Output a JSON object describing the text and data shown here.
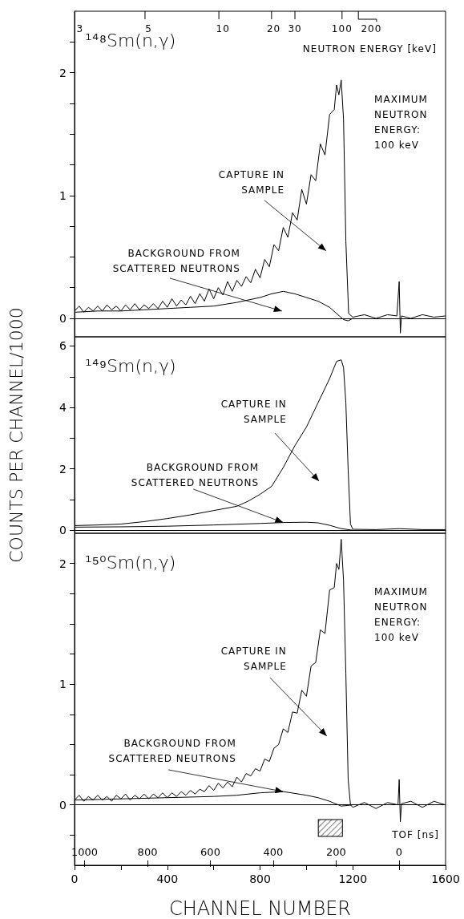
{
  "chart_data": [
    {
      "type": "line",
      "title": "¹⁴⁸Sm(n,γ)",
      "marker": "none",
      "tick_labels": "y",
      "xlim": [
        0,
        1600
      ],
      "ylim": [
        -0.15,
        2.5
      ],
      "yticks": [
        0,
        {
          "value": 0.25,
          "label": null
        },
        {
          "value": 0.5,
          "label": null
        },
        {
          "value": 0.75,
          "label": null
        },
        1,
        {
          "value": 1.25,
          "label": null
        },
        {
          "value": 1.5,
          "label": null
        },
        {
          "value": 1.75,
          "label": null
        },
        2,
        {
          "value": 2.25,
          "label": null
        }
      ],
      "annotations": [
        "CAPTURE IN\nSAMPLE",
        "BACKGROUND FROM\nSCATTERED NEUTRONS",
        "MAXIMUM\nNEUTRON\nENERGY:\n100 keV",
        "3",
        "5",
        "10",
        "20",
        "30",
        "100",
        "200",
        "NEUTRON ENERGY [keV]"
      ],
      "series": [
        {
          "color": "#000000",
          "x": [
            0,
            20,
            40,
            60,
            80,
            100,
            120,
            140,
            160,
            180,
            200,
            220,
            240,
            260,
            280,
            300,
            320,
            340,
            360,
            380,
            400,
            420,
            440,
            460,
            480,
            500,
            520,
            540,
            560,
            580,
            600,
            620,
            640,
            660,
            680,
            700,
            720,
            740,
            760,
            780,
            800,
            820,
            840,
            860,
            880,
            900,
            920,
            940,
            960,
            980,
            1000,
            1020,
            1040,
            1060,
            1080,
            1100,
            1120,
            1130,
            1140,
            1150,
            1160,
            1170,
            1182,
            1200,
            1250,
            1300,
            1350,
            1390,
            1400,
            1405,
            1410,
            1450,
            1500,
            1550,
            1600
          ],
          "values": [
            0.06,
            0.1,
            0.05,
            0.09,
            0.06,
            0.1,
            0.06,
            0.11,
            0.07,
            0.1,
            0.06,
            0.11,
            0.07,
            0.12,
            0.07,
            0.11,
            0.08,
            0.12,
            0.08,
            0.14,
            0.09,
            0.16,
            0.1,
            0.15,
            0.11,
            0.18,
            0.12,
            0.2,
            0.14,
            0.24,
            0.16,
            0.25,
            0.19,
            0.3,
            0.22,
            0.31,
            0.26,
            0.34,
            0.29,
            0.4,
            0.33,
            0.48,
            0.42,
            0.6,
            0.55,
            0.74,
            0.66,
            0.86,
            0.8,
            1.05,
            0.93,
            1.17,
            1.12,
            1.42,
            1.33,
            1.66,
            1.7,
            1.9,
            1.82,
            1.94,
            1.62,
            0.63,
            0.04,
            0.01,
            0.03,
            0.0,
            0.03,
            0.02,
            0.3,
            -0.12,
            0.02,
            0.0,
            0.03,
            0.01,
            0.02
          ]
        },
        {
          "color": "#000000",
          "x": [
            0,
            100,
            200,
            300,
            400,
            500,
            600,
            700,
            750,
            800,
            850,
            900,
            950,
            1000,
            1050,
            1100,
            1130,
            1160,
            1180,
            1200
          ],
          "values": [
            0.05,
            0.06,
            0.06,
            0.07,
            0.08,
            0.09,
            0.1,
            0.13,
            0.15,
            0.17,
            0.2,
            0.22,
            0.2,
            0.17,
            0.14,
            0.09,
            0.04,
            -0.01,
            -0.02,
            0.0
          ]
        }
      ]
    },
    {
      "type": "line",
      "title": "¹⁴⁹Sm(n,γ)",
      "marker": "none",
      "tick_labels": "y",
      "xlim": [
        0,
        1600
      ],
      "ylim": [
        -0.1,
        6.3
      ],
      "ylabel": "COUNTS PER CHANNEL/1000",
      "yticks": [
        0,
        {
          "value": 1,
          "label": null
        },
        2,
        {
          "value": 3,
          "label": null
        },
        4,
        {
          "value": 5,
          "label": null
        },
        6
      ],
      "annotations": [
        "CAPTURE IN\nSAMPLE",
        {
          "text": "BACKGROUND FROM\nSCATTERED NEUTRONS",
          "x": 900,
          "y": 0.25
        }
      ],
      "series": [
        {
          "color": "#000000",
          "x": [
            0,
            100,
            200,
            300,
            400,
            500,
            600,
            700,
            750,
            800,
            850,
            900,
            950,
            1000,
            1050,
            1100,
            1130,
            1150,
            1160,
            1170,
            1180,
            1190,
            1200,
            1300,
            1400,
            1500,
            1600
          ],
          "values": [
            0.15,
            0.17,
            0.2,
            0.28,
            0.38,
            0.5,
            0.64,
            0.78,
            0.95,
            1.17,
            1.43,
            2.04,
            2.75,
            3.36,
            4.15,
            4.94,
            5.5,
            5.55,
            5.3,
            4.15,
            1.96,
            0.2,
            0.03,
            0.02,
            0.05,
            0.02,
            0.02
          ]
        },
        {
          "color": "#000000",
          "x": [
            0,
            200,
            400,
            600,
            800,
            900,
            1000,
            1050,
            1100,
            1150,
            1200
          ],
          "values": [
            0.1,
            0.11,
            0.13,
            0.17,
            0.22,
            0.25,
            0.26,
            0.24,
            0.16,
            0.05,
            0.0
          ]
        }
      ]
    },
    {
      "type": "line",
      "title": "¹⁵⁰Sm(n,γ)",
      "marker": "none",
      "xlim": [
        0,
        1600
      ],
      "ylim": [
        -0.5,
        2.25
      ],
      "xlabel": "CHANNEL NUMBER",
      "xticks": [
        0,
        {
          "value": 200,
          "label": null
        },
        400,
        {
          "value": 600,
          "label": null
        },
        800,
        {
          "value": 1000,
          "label": null
        },
        1200,
        {
          "value": 1400,
          "label": null
        },
        1600
      ],
      "yticks": [
        {
          "value": -0.25,
          "label": null
        },
        0,
        {
          "value": 0.25,
          "label": null
        },
        {
          "value": 0.5,
          "label": null
        },
        {
          "value": 0.75,
          "label": null
        },
        1,
        {
          "value": 1.25,
          "label": null
        },
        {
          "value": 1.5,
          "label": null
        },
        {
          "value": 1.75,
          "label": null
        },
        2
      ],
      "x2lim": [
        1032,
        -148
      ],
      "x2ticks": [
        1000,
        800,
        600,
        400,
        200,
        0
      ],
      "x2label": "TOF [ns]",
      "ref_lines": [
        {
          "axis": "y",
          "value": 0
        }
      ],
      "annotations": [
        "CAPTURE IN\nSAMPLE",
        {
          "text": "BACKGROUND FROM\nSCATTERED NEUTRONS",
          "x": 900,
          "y": 0.11
        },
        "MAXIMUM\nNEUTRON\nENERGY:\n100 keV"
      ],
      "series": [
        {
          "color": "#000000",
          "x": [
            0,
            20,
            40,
            60,
            80,
            100,
            120,
            140,
            160,
            180,
            200,
            220,
            240,
            260,
            280,
            300,
            320,
            340,
            360,
            380,
            400,
            420,
            440,
            460,
            480,
            500,
            520,
            540,
            560,
            580,
            600,
            620,
            640,
            660,
            680,
            700,
            720,
            740,
            760,
            780,
            800,
            820,
            840,
            860,
            880,
            900,
            920,
            940,
            960,
            980,
            1000,
            1020,
            1040,
            1060,
            1080,
            1100,
            1120,
            1130,
            1140,
            1150,
            1160,
            1170,
            1180,
            1190,
            1200,
            1250,
            1300,
            1350,
            1395,
            1400,
            1405,
            1410,
            1450,
            1500,
            1550,
            1600
          ],
          "values": [
            0.04,
            0.08,
            0.03,
            0.07,
            0.04,
            0.08,
            0.04,
            0.07,
            0.03,
            0.08,
            0.05,
            0.09,
            0.04,
            0.08,
            0.05,
            0.09,
            0.05,
            0.09,
            0.06,
            0.1,
            0.06,
            0.1,
            0.07,
            0.11,
            0.08,
            0.12,
            0.09,
            0.13,
            0.11,
            0.16,
            0.12,
            0.18,
            0.14,
            0.19,
            0.15,
            0.23,
            0.19,
            0.26,
            0.24,
            0.3,
            0.28,
            0.38,
            0.36,
            0.47,
            0.5,
            0.63,
            0.6,
            0.77,
            0.76,
            0.95,
            0.9,
            1.15,
            1.18,
            1.45,
            1.42,
            1.78,
            1.8,
            2.0,
            1.95,
            2.2,
            1.86,
            1.09,
            0.21,
            0.0,
            -0.02,
            0.02,
            -0.03,
            0.02,
            0.0,
            0.21,
            -0.14,
            0.01,
            0.03,
            -0.02,
            0.03,
            0.0
          ]
        },
        {
          "color": "#000000",
          "x": [
            0,
            200,
            400,
            600,
            700,
            800,
            900,
            1000,
            1050,
            1100,
            1150,
            1200
          ],
          "values": [
            0.04,
            0.05,
            0.06,
            0.07,
            0.08,
            0.1,
            0.11,
            0.08,
            0.06,
            0.03,
            -0.01,
            0.0
          ]
        }
      ]
    }
  ]
}
